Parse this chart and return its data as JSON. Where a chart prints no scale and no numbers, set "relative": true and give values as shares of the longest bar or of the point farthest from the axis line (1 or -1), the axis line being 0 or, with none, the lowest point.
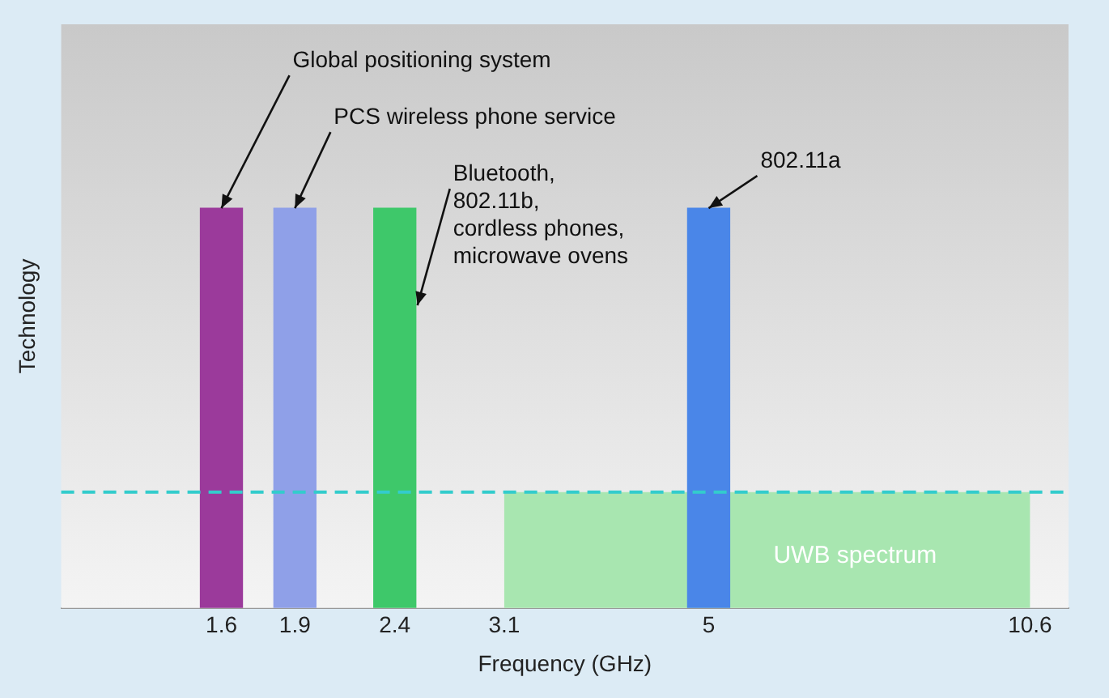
{
  "chart_data": {
    "type": "bar",
    "relative": true,
    "xlabel": "Frequency (GHz)",
    "ylabel": "Technology",
    "x": [
      1.6,
      1.9,
      2.4,
      5
    ],
    "values": [
      1,
      1,
      1,
      1
    ],
    "colors": [
      "#9b3a9b",
      "#8fa0e8",
      "#3ec86a",
      "#4a86e8"
    ],
    "log": "x",
    "xlim": [
      1.1,
      11.6
    ],
    "xticks": [
      1.6,
      1.9,
      2.4,
      3.1,
      5,
      10.6
    ],
    "grid": false,
    "legend": false,
    "bands": [
      {
        "axis": "x",
        "from": 3.1,
        "to": 10.6,
        "label": "UWB spectrum",
        "color": "#a8e6b0"
      }
    ],
    "ref_lines": [
      {
        "axis": "y",
        "value": 0.29,
        "color": "#33cccc",
        "line_style": "dashed"
      }
    ],
    "annotations": [
      {
        "text": "Global positioning system",
        "x": 1.6,
        "y": 1
      },
      {
        "text": "PCS wireless phone service",
        "x": 1.9,
        "y": 1
      },
      {
        "text": "Bluetooth, 802.11b, cordless phones, microwave ovens",
        "x": 2.4,
        "y": 1
      },
      {
        "text": "802.11a",
        "x": 5,
        "y": 1
      }
    ]
  }
}
